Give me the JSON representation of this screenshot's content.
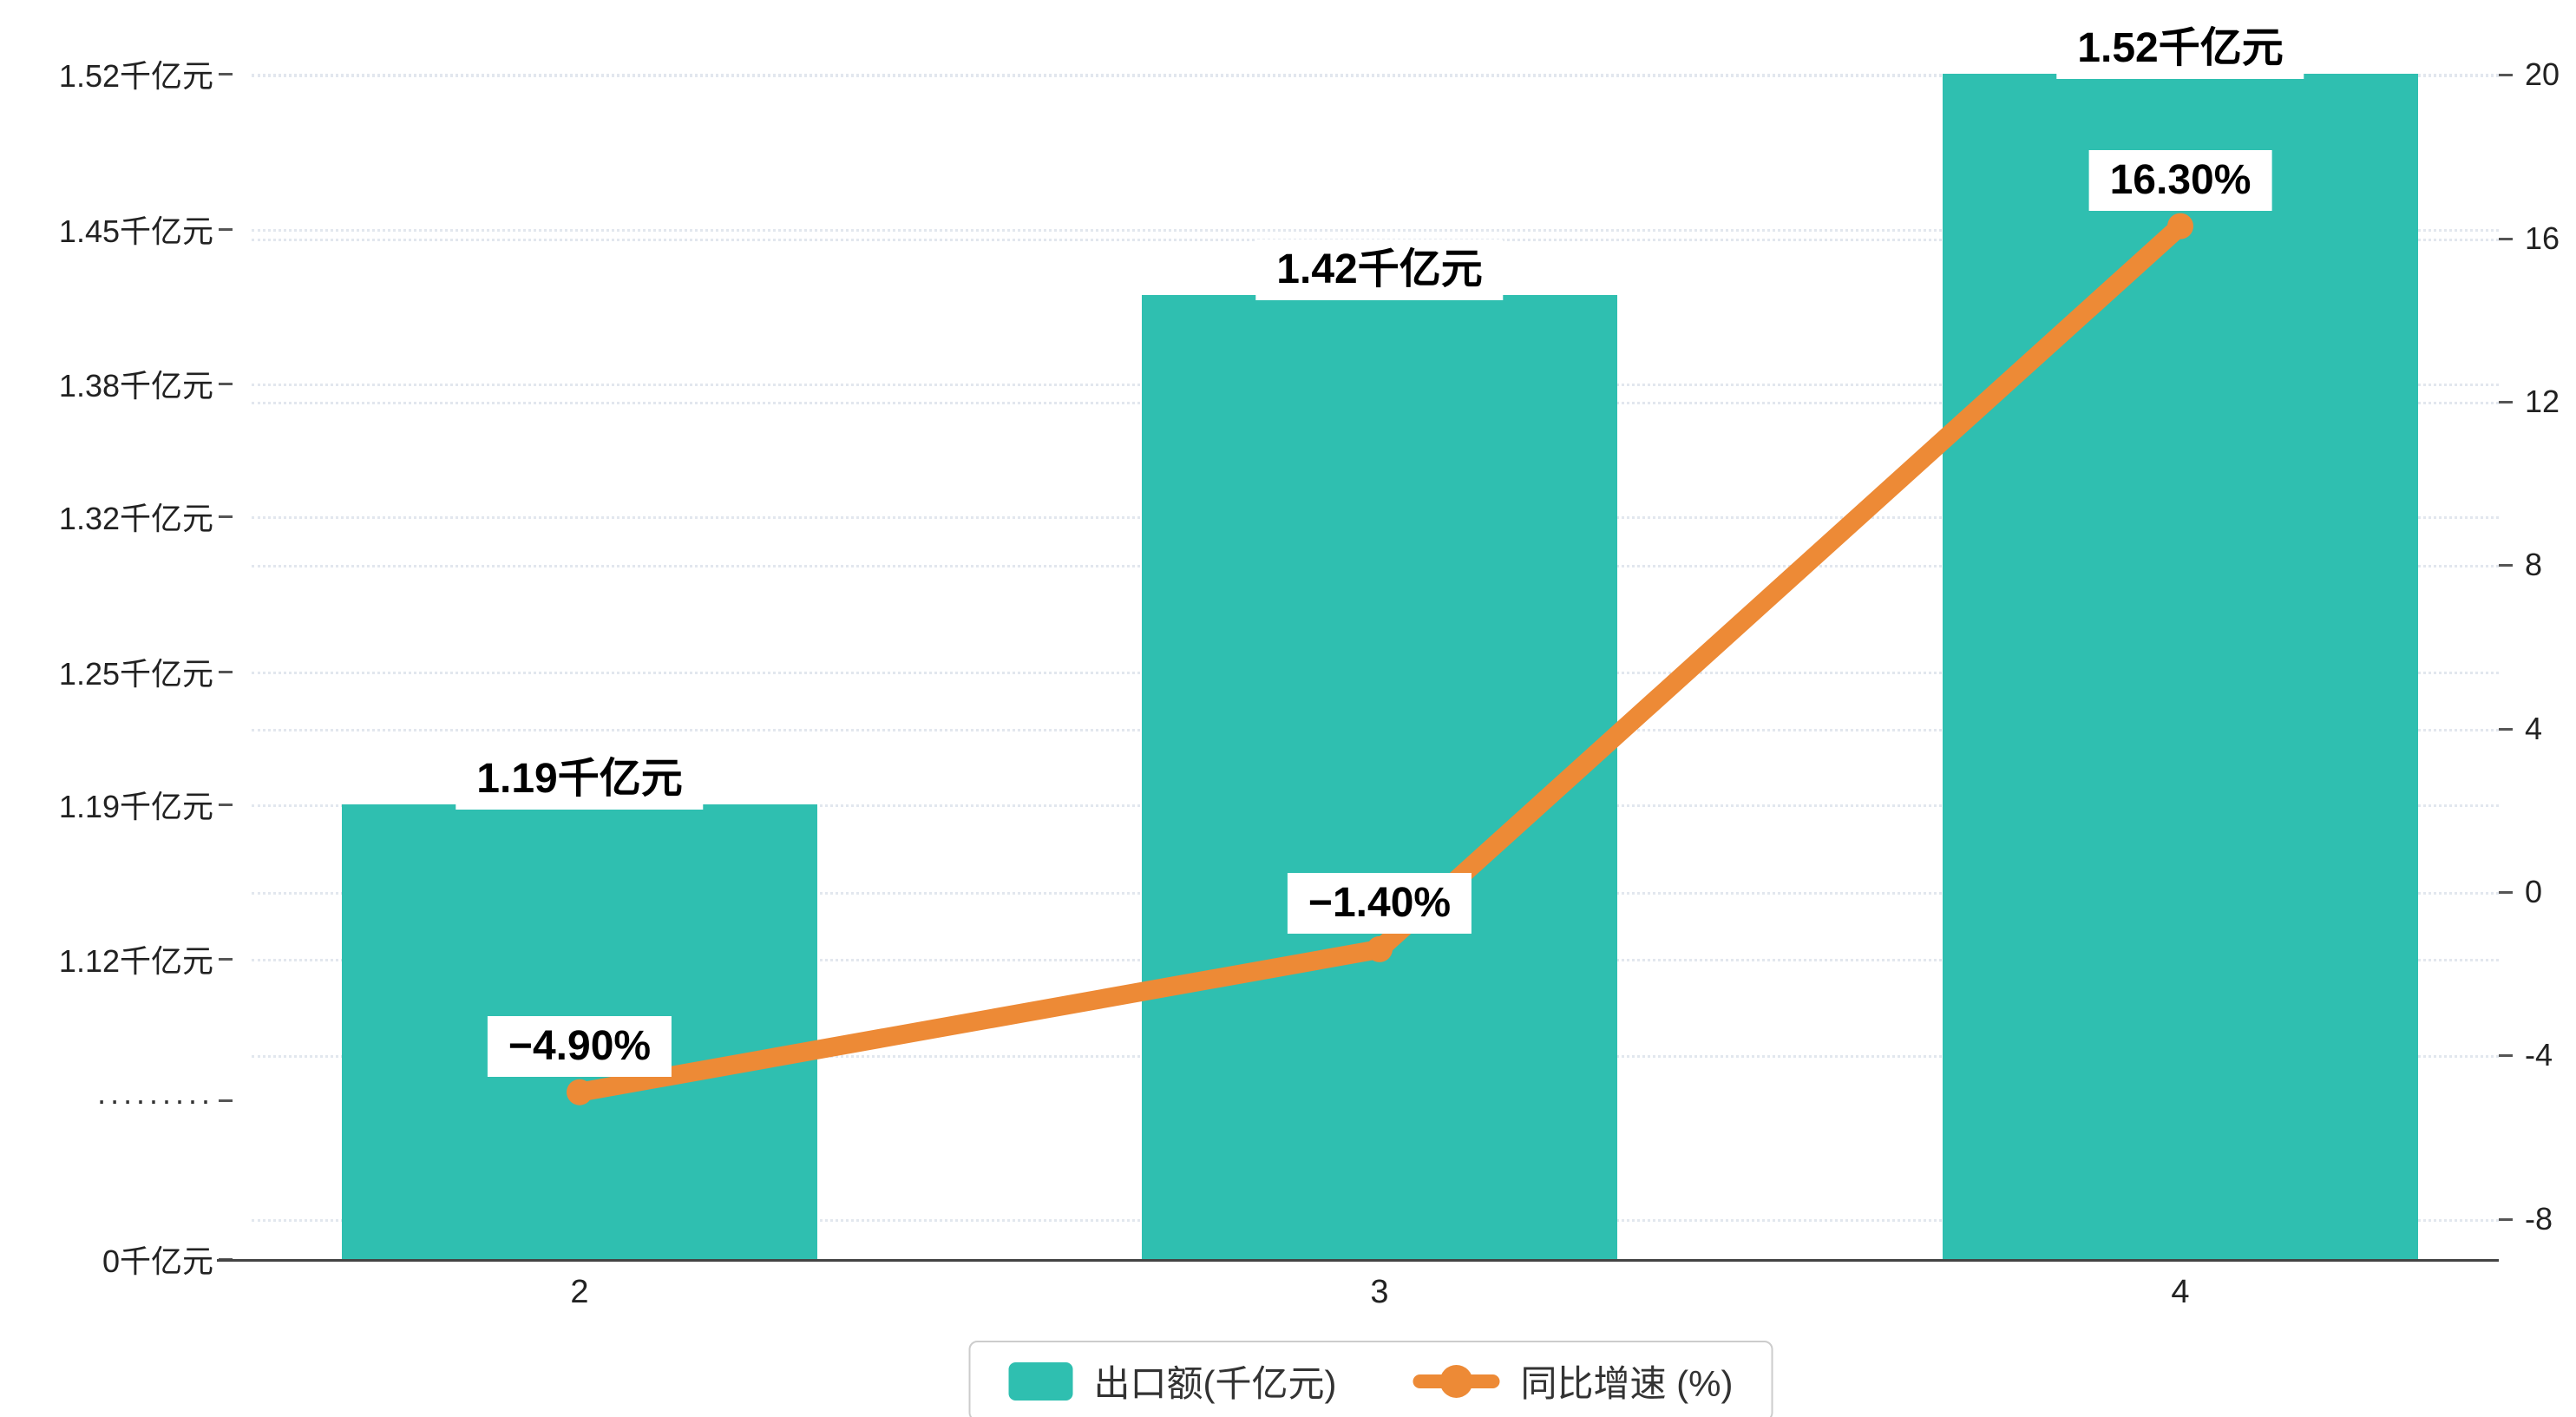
{
  "colors": {
    "bar": "#2FBFB0",
    "line": "#ED8A36",
    "axis_text": "#222222",
    "grid": "#e2e7ee",
    "axis_line": "#444444",
    "legend_border": "#cccccc",
    "label_bg": "#ffffff"
  },
  "chart_data": {
    "type": "bar+line",
    "categories": [
      "2",
      "3",
      "4"
    ],
    "series": [
      {
        "name": "出口额(千亿元)",
        "type": "bar",
        "axis": "left",
        "values": [
          1.19,
          1.42,
          1.52
        ],
        "data_labels": [
          "1.19千亿元",
          "1.42千亿元",
          "1.52千亿元"
        ],
        "color": "#2FBFB0"
      },
      {
        "name": "同比增速 (%)",
        "type": "line",
        "axis": "right",
        "values": [
          -4.9,
          -1.4,
          16.3
        ],
        "data_labels": [
          "−4.90%",
          "−1.40%",
          "16.30%"
        ],
        "color": "#ED8A36"
      }
    ],
    "left_axis": {
      "tick_labels": [
        "1.52千亿元",
        "1.45千亿元",
        "1.38千亿元",
        "1.32千亿元",
        "1.25千亿元",
        "1.19千亿元",
        "1.12千亿元"
      ],
      "tick_values": [
        1.52,
        1.45,
        1.38,
        1.32,
        1.25,
        1.19,
        1.12
      ],
      "break_label": "·········",
      "zero_label": "0千亿元",
      "range_note": "axis break between 0 and 1.12"
    },
    "right_axis": {
      "tick_labels": [
        "20",
        "16",
        "12",
        "8",
        "4",
        "0",
        "-4",
        "-8"
      ],
      "tick_values": [
        20,
        16,
        12,
        8,
        4,
        0,
        -4,
        -8
      ],
      "range": [
        -8,
        20
      ]
    },
    "legend": {
      "position": "bottom-center",
      "items": [
        {
          "label": "出口额(千亿元)",
          "marker": "bar-swatch"
        },
        {
          "label": "同比增速 (%)",
          "marker": "line-dot"
        }
      ]
    },
    "grid": "dotted-horizontal",
    "title": ""
  }
}
